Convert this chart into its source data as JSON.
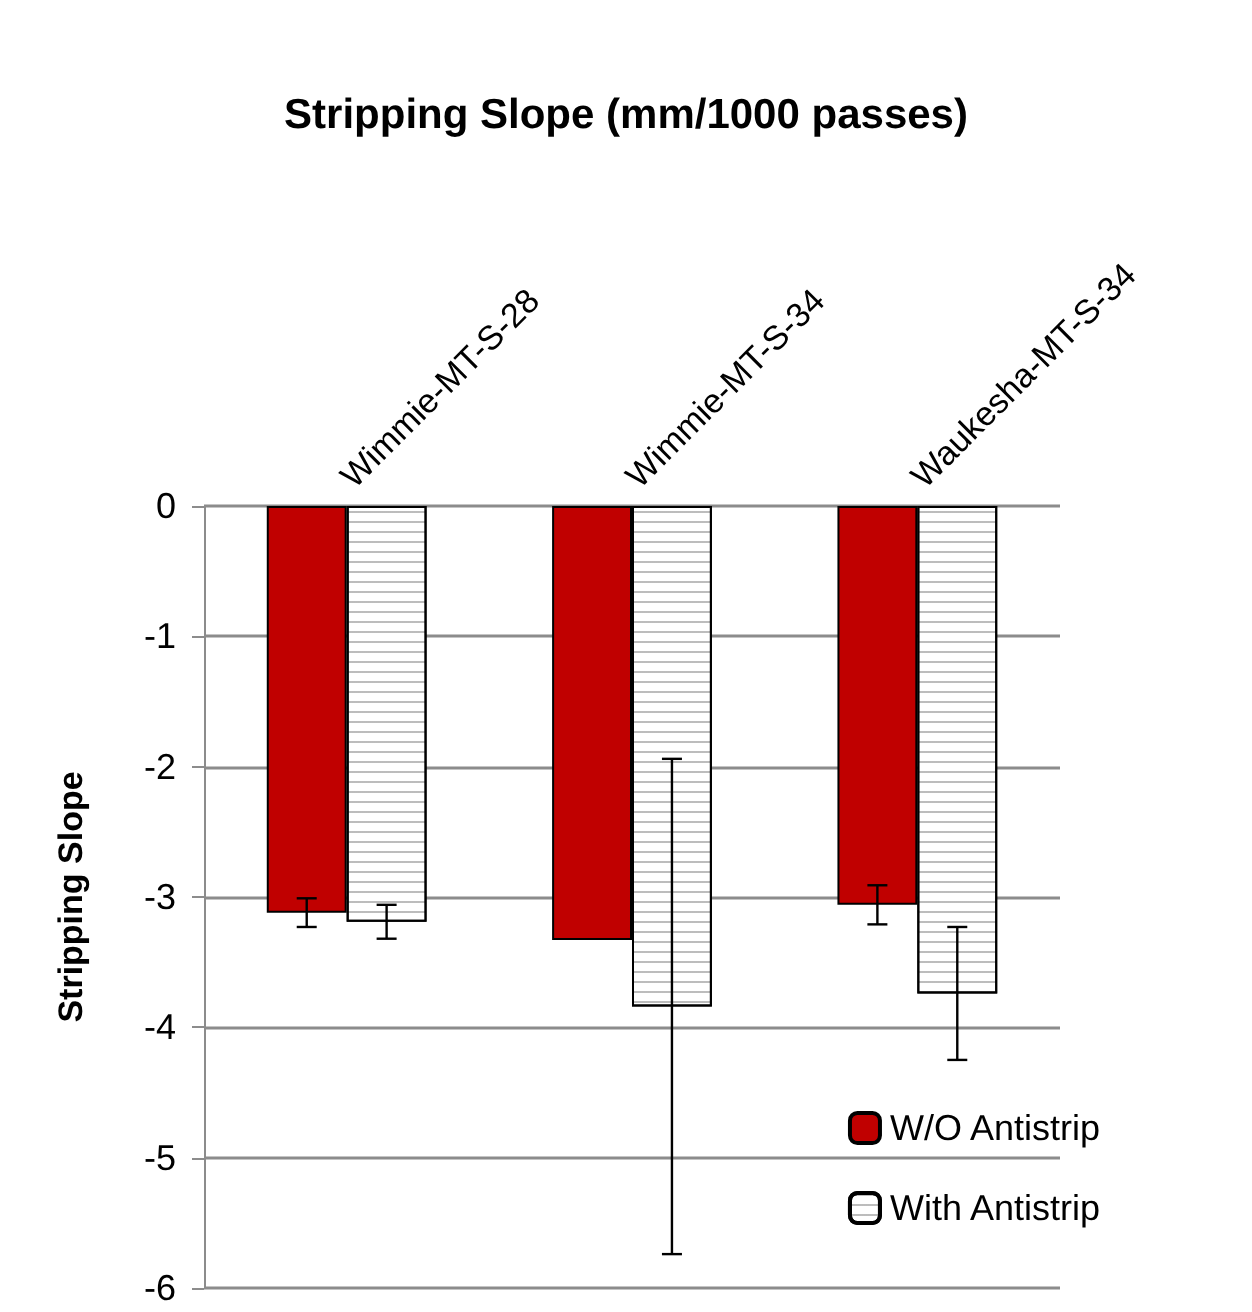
{
  "chart_data": {
    "type": "bar",
    "title": "Stripping Slope (mm/1000 passes)",
    "ylabel": "Stripping Slope",
    "categories": [
      "Wimmie-MT-S-28",
      "Wimmie-MT-S-34",
      "Waukesha-MT-S-34"
    ],
    "series": [
      {
        "name": "W/O Antistrip",
        "color": "#c00000",
        "values": [
          -3.12,
          -3.33,
          -3.06
        ],
        "errors": [
          0.11,
          null,
          0.15
        ]
      },
      {
        "name": "With Antistrip",
        "color": "#ffffff",
        "values": [
          -3.19,
          -3.84,
          -3.74
        ],
        "errors": [
          0.13,
          1.9,
          0.51
        ]
      }
    ],
    "ylim": [
      -6,
      0
    ],
    "yticks": [
      -6,
      -5,
      -4,
      -3,
      -2,
      -1,
      0
    ],
    "grid": "y",
    "legend": "bottom right"
  }
}
